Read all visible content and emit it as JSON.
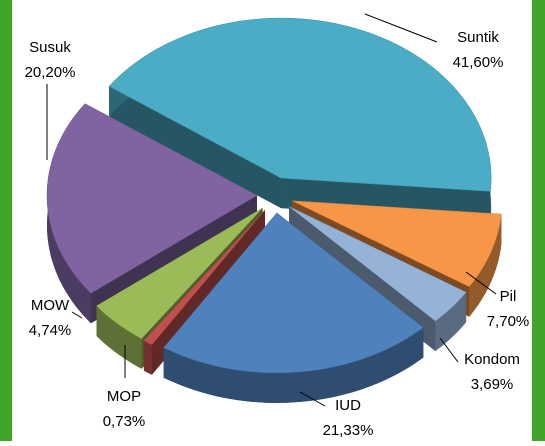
{
  "chart_data": {
    "type": "pie",
    "categories": [
      "Suntik",
      "Pil",
      "Kondom",
      "IUD",
      "MOP",
      "MOW",
      "Susuk"
    ],
    "values": [
      41.6,
      7.7,
      3.69,
      21.33,
      0.73,
      4.74,
      20.2
    ],
    "value_labels": [
      "41,60%",
      "7,70%",
      "3,69%",
      "21,33%",
      "0,73%",
      "4,74%",
      "20,20%"
    ],
    "colors": [
      "#4bacc6",
      "#f79646",
      "#95b3d7",
      "#4f81bd",
      "#c0504d",
      "#9bbb59",
      "#8064a2"
    ]
  }
}
